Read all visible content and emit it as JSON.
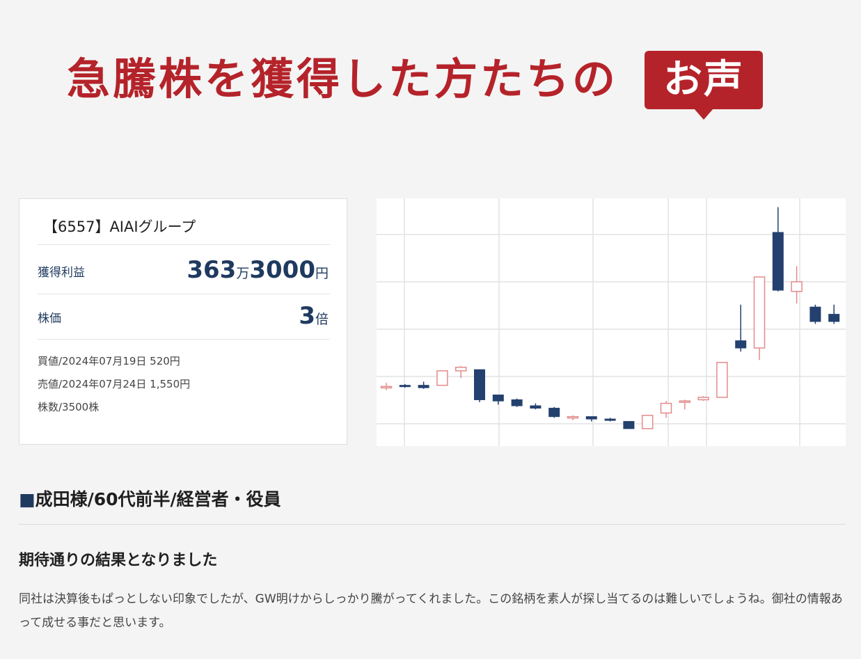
{
  "header": {
    "headline": "急騰株を獲得した方たちの",
    "badge": "お声"
  },
  "card": {
    "stock_name": "【6557】AIAIグループ",
    "profit": {
      "label": "獲得利益",
      "value_main": "363",
      "value_unit1": "万",
      "value_sub": "3000",
      "value_unit2": "円"
    },
    "price": {
      "label": "株価",
      "value": "3",
      "unit": "倍"
    },
    "details": {
      "buy": "買値/2024年07月19日 520円",
      "sell": "売値/2024年07月24日 1,550円",
      "shares": "株数/3500株"
    }
  },
  "chart_data": {
    "type": "candlestick",
    "title": "",
    "xlabel": "",
    "ylabel": "",
    "up_color": "#e48a8a",
    "down_color": "#23406e",
    "ylim": [
      0,
      100
    ],
    "candles": [
      {
        "o": 23.0,
        "c": 23.0,
        "h": 24.5,
        "l": 21.5
      },
      {
        "o": 23.5,
        "c": 23.0,
        "h": 24.0,
        "l": 22.5
      },
      {
        "o": 23.5,
        "c": 22.5,
        "h": 25.0,
        "l": 22.0
      },
      {
        "o": 23.5,
        "c": 29.5,
        "h": 29.5,
        "l": 23.5
      },
      {
        "o": 29.5,
        "c": 31.0,
        "h": 31.5,
        "l": 26.5
      },
      {
        "o": 30.0,
        "c": 17.5,
        "h": 30.0,
        "l": 16.5
      },
      {
        "o": 19.5,
        "c": 17.0,
        "h": 19.5,
        "l": 15.5
      },
      {
        "o": 17.5,
        "c": 15.0,
        "h": 18.0,
        "l": 14.5
      },
      {
        "o": 15.0,
        "c": 14.0,
        "h": 16.0,
        "l": 13.5
      },
      {
        "o": 14.0,
        "c": 10.5,
        "h": 14.5,
        "l": 10.0
      },
      {
        "o": 10.0,
        "c": 10.5,
        "h": 11.0,
        "l": 9.0
      },
      {
        "o": 10.5,
        "c": 9.5,
        "h": 10.5,
        "l": 8.5
      },
      {
        "o": 9.5,
        "c": 9.0,
        "h": 10.0,
        "l": 8.5
      },
      {
        "o": 8.5,
        "c": 5.5,
        "h": 8.5,
        "l": 5.5
      },
      {
        "o": 5.5,
        "c": 11.0,
        "h": 11.0,
        "l": 5.5
      },
      {
        "o": 12.0,
        "c": 16.0,
        "h": 17.0,
        "l": 10.0
      },
      {
        "o": 16.5,
        "c": 17.0,
        "h": 17.5,
        "l": 13.5
      },
      {
        "o": 17.5,
        "c": 18.5,
        "h": 19.0,
        "l": 17.0
      },
      {
        "o": 18.5,
        "c": 33.0,
        "h": 33.0,
        "l": 18.5
      },
      {
        "o": 42.0,
        "c": 39.0,
        "h": 57.0,
        "l": 37.5
      },
      {
        "o": 39.0,
        "c": 68.5,
        "h": 68.5,
        "l": 34.0
      },
      {
        "o": 87.0,
        "c": 63.0,
        "h": 97.5,
        "l": 62.5
      },
      {
        "o": 62.5,
        "c": 66.5,
        "h": 73.0,
        "l": 57.5
      },
      {
        "o": 56.0,
        "c": 50.0,
        "h": 57.0,
        "l": 49.0
      },
      {
        "o": 53.0,
        "c": 50.0,
        "h": 57.0,
        "l": 49.0
      }
    ]
  },
  "testimonial": {
    "square": "■",
    "person": "成田様/60代前半/経営者・役員",
    "title": "期待通りの結果となりました",
    "body": "同社は決算後もぱっとしない印象でしたが、GW明けからしっかり騰がってくれました。この銘柄を素人が探し当てるのは難しいでしょうね。御社の情報あって成せる事だと思います。"
  }
}
